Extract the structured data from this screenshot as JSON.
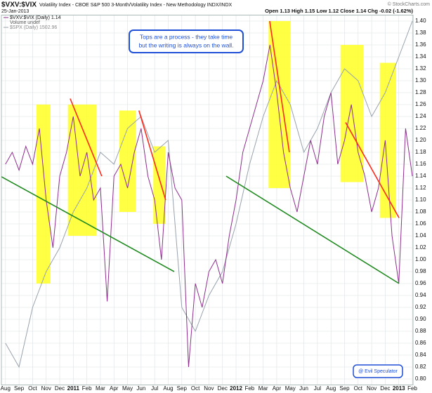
{
  "chart_data": {
    "type": "line",
    "symbol": "$VXV:$VIX",
    "title": "Volatility Index - CBOE S&P 500 3-Month/Volatility Index - New Methodology INDX/INDX",
    "date": "25-Jan-2013",
    "quote": "Open 1.13  High 1.15  Low 1.12  Close 1.14  Chg -0.02 (-1.62%)",
    "source": "© StockCharts.com",
    "volume_note": "Volume undef",
    "annotation": [
      "Tops are a process - they take time",
      "but the writing is always on the wall."
    ],
    "credit": "@ Evil Speculator",
    "grid": true,
    "xlim": [
      -0.3,
      30.05
    ],
    "ylim": [
      0.79,
      1.41
    ],
    "xticks": [
      {
        "value": 0,
        "label": "Aug"
      },
      {
        "value": 1,
        "label": "Sep"
      },
      {
        "value": 2,
        "label": "Oct"
      },
      {
        "value": 3,
        "label": "Nov"
      },
      {
        "value": 4,
        "label": "Dec"
      },
      {
        "value": 5,
        "label": "2011"
      },
      {
        "value": 6,
        "label": "Feb"
      },
      {
        "value": 7,
        "label": "Mar"
      },
      {
        "value": 8,
        "label": "Apr"
      },
      {
        "value": 9,
        "label": "May"
      },
      {
        "value": 10,
        "label": "Jun"
      },
      {
        "value": 11,
        "label": "Jul"
      },
      {
        "value": 12,
        "label": "Aug"
      },
      {
        "value": 13,
        "label": "Sep"
      },
      {
        "value": 14,
        "label": "Oct"
      },
      {
        "value": 15,
        "label": "Nov"
      },
      {
        "value": 16,
        "label": "Dec"
      },
      {
        "value": 17,
        "label": "2012"
      },
      {
        "value": 18,
        "label": "Feb"
      },
      {
        "value": 19,
        "label": "Mar"
      },
      {
        "value": 20,
        "label": "Apr"
      },
      {
        "value": 21,
        "label": "May"
      },
      {
        "value": 22,
        "label": "Jun"
      },
      {
        "value": 23,
        "label": "Jul"
      },
      {
        "value": 24,
        "label": "Aug"
      },
      {
        "value": 25,
        "label": "Sep"
      },
      {
        "value": 26,
        "label": "Oct"
      },
      {
        "value": 27,
        "label": "Nov"
      },
      {
        "value": 28,
        "label": "Dec"
      },
      {
        "value": 29,
        "label": "2013"
      },
      {
        "value": 30,
        "label": "Feb"
      }
    ],
    "yticks": [
      {
        "value": 0.8,
        "label": "0.80"
      },
      {
        "value": 0.82,
        "label": "0.82"
      },
      {
        "value": 0.84,
        "label": "0.84"
      },
      {
        "value": 0.86,
        "label": "0.86"
      },
      {
        "value": 0.88,
        "label": "0.88"
      },
      {
        "value": 0.9,
        "label": "0.90"
      },
      {
        "value": 0.92,
        "label": "0.92"
      },
      {
        "value": 0.94,
        "label": "0.94"
      },
      {
        "value": 0.96,
        "label": "0.96"
      },
      {
        "value": 0.98,
        "label": "0.98"
      },
      {
        "value": 1.0,
        "label": "1.00"
      },
      {
        "value": 1.02,
        "label": "1.02"
      },
      {
        "value": 1.04,
        "label": "1.04"
      },
      {
        "value": 1.06,
        "label": "1.06"
      },
      {
        "value": 1.08,
        "label": "1.08"
      },
      {
        "value": 1.1,
        "label": "1.10"
      },
      {
        "value": 1.12,
        "label": "1.12"
      },
      {
        "value": 1.14,
        "label": "1.14"
      },
      {
        "value": 1.16,
        "label": "1.16"
      },
      {
        "value": 1.18,
        "label": "1.18"
      },
      {
        "value": 1.2,
        "label": "1.20"
      },
      {
        "value": 1.22,
        "label": "1.22"
      },
      {
        "value": 1.24,
        "label": "1.24"
      },
      {
        "value": 1.26,
        "label": "1.26"
      },
      {
        "value": 1.28,
        "label": "1.28"
      },
      {
        "value": 1.3,
        "label": "1.30"
      },
      {
        "value": 1.32,
        "label": "1.32"
      },
      {
        "value": 1.34,
        "label": "1.34"
      },
      {
        "value": 1.36,
        "label": "1.36"
      },
      {
        "value": 1.38,
        "label": "1.38"
      },
      {
        "value": 1.4,
        "label": "1.40"
      }
    ],
    "series": [
      {
        "name": "$SPX (Daily) 1502.96",
        "color": "#98a2ad",
        "x": [
          0,
          1,
          2,
          3,
          4,
          5,
          6,
          7,
          8,
          9,
          10,
          11,
          12,
          13,
          14,
          15,
          16,
          17,
          18,
          19,
          20,
          21,
          22,
          23,
          24,
          25,
          26,
          27,
          28,
          29,
          30
        ],
        "values": [
          0.86,
          0.82,
          0.92,
          0.98,
          1.02,
          1.08,
          1.12,
          1.18,
          1.16,
          1.22,
          1.24,
          1.18,
          1.2,
          0.92,
          0.88,
          0.94,
          0.98,
          1.06,
          1.16,
          1.24,
          1.3,
          1.26,
          1.18,
          1.22,
          1.28,
          1.32,
          1.3,
          1.24,
          1.28,
          1.34,
          1.4
        ]
      },
      {
        "name": "$VXV:$VIX (Daily) 1.14",
        "color": "#8e2f8e",
        "x": [
          0,
          0.5,
          1,
          1.5,
          2,
          2.5,
          3,
          3.5,
          4,
          4.5,
          5,
          5.5,
          6,
          6.5,
          7,
          7.5,
          8,
          8.5,
          9,
          9.5,
          10,
          10.5,
          11,
          11.5,
          12,
          12.5,
          13,
          13.5,
          14,
          14.5,
          15,
          15.5,
          16,
          16.5,
          17,
          17.5,
          18,
          18.5,
          19,
          19.5,
          20,
          20.5,
          21,
          21.5,
          22,
          22.5,
          23,
          23.5,
          24,
          24.5,
          25,
          25.5,
          26,
          26.5,
          27,
          27.5,
          28,
          28.5,
          29,
          29.5,
          30
        ],
        "values": [
          1.16,
          1.18,
          1.15,
          1.19,
          1.16,
          1.22,
          1.1,
          1.02,
          1.14,
          1.18,
          1.24,
          1.14,
          1.18,
          1.1,
          1.12,
          0.93,
          1.14,
          1.16,
          1.12,
          1.18,
          1.22,
          1.14,
          1.1,
          1.0,
          1.18,
          1.12,
          1.1,
          0.82,
          0.96,
          0.92,
          0.98,
          1.0,
          0.96,
          1.04,
          1.1,
          1.18,
          1.22,
          1.26,
          1.3,
          1.36,
          1.28,
          1.18,
          1.12,
          1.08,
          1.14,
          1.2,
          1.16,
          1.24,
          1.28,
          1.16,
          1.2,
          1.26,
          1.18,
          1.14,
          1.08,
          1.12,
          1.2,
          1.04,
          0.96,
          1.22,
          1.14
        ]
      }
    ],
    "highlights": [
      {
        "color": "#ffff22",
        "x": [
          2.28,
          3.32
        ],
        "y": [
          0.96,
          1.26
        ]
      },
      {
        "color": "#ffff22",
        "x": [
          4.6,
          6.7
        ],
        "y": [
          1.04,
          1.26
        ]
      },
      {
        "color": "#ffff22",
        "x": [
          8.4,
          9.6
        ],
        "y": [
          1.08,
          1.25
        ]
      },
      {
        "color": "#ffff22",
        "x": [
          10.9,
          11.8
        ],
        "y": [
          1.06,
          1.19
        ]
      },
      {
        "color": "#ffff22",
        "x": [
          19.4,
          21.0
        ],
        "y": [
          1.12,
          1.4
        ]
      },
      {
        "color": "#ffff22",
        "x": [
          24.7,
          26.4
        ],
        "y": [
          1.13,
          1.36
        ]
      },
      {
        "color": "#ffff22",
        "x": [
          27.6,
          28.8
        ],
        "y": [
          1.07,
          1.33
        ]
      }
    ],
    "trendlines": [
      {
        "color": "#ff2a1a",
        "x": [
          4.77,
          7.1
        ],
        "y": [
          1.27,
          1.14
        ]
      },
      {
        "color": "#ff2a1a",
        "x": [
          9.84,
          11.81
        ],
        "y": [
          1.25,
          1.1
        ]
      },
      {
        "color": "#ff2a1a",
        "x": [
          19.48,
          20.93
        ],
        "y": [
          1.4,
          1.18
        ]
      },
      {
        "color": "#ff2a1a",
        "x": [
          25.08,
          29.02
        ],
        "y": [
          1.23,
          1.07
        ]
      },
      {
        "color": "#228b22",
        "x": [
          -0.3,
          12.44
        ],
        "y": [
          1.139,
          0.98
        ]
      },
      {
        "color": "#228b22",
        "x": [
          16.27,
          29.02
        ],
        "y": [
          1.14,
          0.96
        ]
      }
    ]
  }
}
